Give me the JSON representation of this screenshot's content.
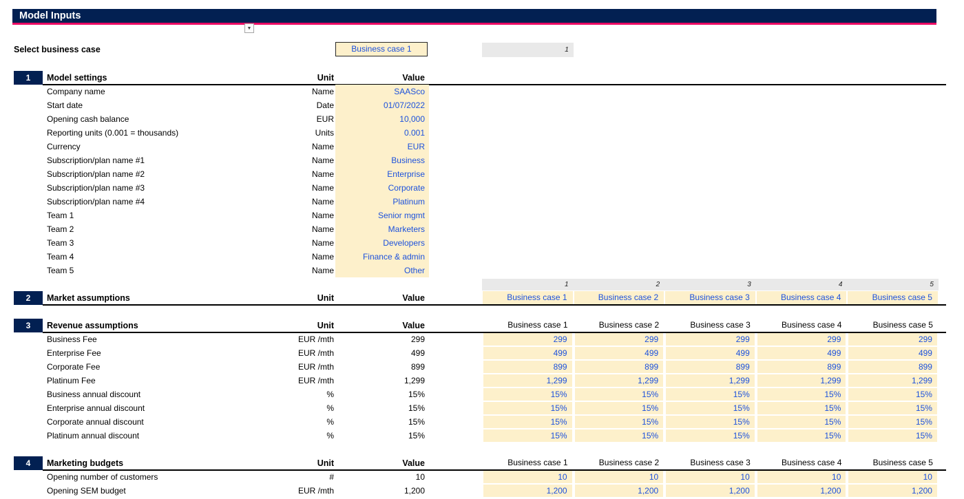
{
  "title_bar": {
    "title": "Model Inputs"
  },
  "selector": {
    "label": "Select business case",
    "selected": "Business case 1",
    "index_cell": "1"
  },
  "case_columns": {
    "numbers": [
      "1",
      "2",
      "3",
      "4",
      "5"
    ],
    "labels": [
      "Business case 1",
      "Business case 2",
      "Business case 3",
      "Business case 4",
      "Business case 5"
    ]
  },
  "sections": [
    {
      "number": "1",
      "title": "Model settings",
      "unit_header": "Unit",
      "value_header": "Value",
      "case_headers": "none",
      "numbers_strip": false,
      "value_style": "input",
      "rows": [
        {
          "label": "Company name",
          "unit": "Name",
          "value": "SAASco"
        },
        {
          "label": "Start date",
          "unit": "Date",
          "value": "01/07/2022"
        },
        {
          "label": "Opening cash balance",
          "unit": "EUR",
          "value": "10,000"
        },
        {
          "label": "Reporting units (0.001 = thousands)",
          "unit": "Units",
          "value": "0.001"
        },
        {
          "label": "Currency",
          "unit": "Name",
          "value": "EUR"
        },
        {
          "label": "Subscription/plan name #1",
          "unit": "Name",
          "value": "Business"
        },
        {
          "label": "Subscription/plan name #2",
          "unit": "Name",
          "value": "Enterprise"
        },
        {
          "label": "Subscription/plan name #3",
          "unit": "Name",
          "value": "Corporate"
        },
        {
          "label": "Subscription/plan name #4",
          "unit": "Name",
          "value": "Platinum"
        },
        {
          "label": "Team 1",
          "unit": "Name",
          "value": "Senior mgmt"
        },
        {
          "label": "Team 2",
          "unit": "Name",
          "value": "Marketers"
        },
        {
          "label": "Team 3",
          "unit": "Name",
          "value": "Developers"
        },
        {
          "label": "Team 4",
          "unit": "Name",
          "value": "Finance & admin"
        },
        {
          "label": "Team 5",
          "unit": "Name",
          "value": "Other"
        }
      ]
    },
    {
      "number": "2",
      "title": "Market assumptions",
      "unit_header": "Unit",
      "value_header": "Value",
      "case_headers": "input",
      "numbers_strip": true,
      "value_style": "plain",
      "rows": []
    },
    {
      "number": "3",
      "title": "Revenue assumptions",
      "unit_header": "Unit",
      "value_header": "Value",
      "case_headers": "plain",
      "numbers_strip": false,
      "value_style": "plain",
      "rows": [
        {
          "label": "Business Fee",
          "unit": "EUR /mth",
          "value": "299",
          "cases": [
            "299",
            "299",
            "299",
            "299",
            "299"
          ]
        },
        {
          "label": "Enterprise Fee",
          "unit": "EUR /mth",
          "value": "499",
          "cases": [
            "499",
            "499",
            "499",
            "499",
            "499"
          ]
        },
        {
          "label": "Corporate Fee",
          "unit": "EUR /mth",
          "value": "899",
          "cases": [
            "899",
            "899",
            "899",
            "899",
            "899"
          ]
        },
        {
          "label": "Platinum Fee",
          "unit": "EUR /mth",
          "value": "1,299",
          "cases": [
            "1,299",
            "1,299",
            "1,299",
            "1,299",
            "1,299"
          ]
        },
        {
          "label": "Business annual discount",
          "unit": "%",
          "value": "15%",
          "cases": [
            "15%",
            "15%",
            "15%",
            "15%",
            "15%"
          ]
        },
        {
          "label": "Enterprise annual discount",
          "unit": "%",
          "value": "15%",
          "cases": [
            "15%",
            "15%",
            "15%",
            "15%",
            "15%"
          ]
        },
        {
          "label": "Corporate annual discount",
          "unit": "%",
          "value": "15%",
          "cases": [
            "15%",
            "15%",
            "15%",
            "15%",
            "15%"
          ]
        },
        {
          "label": "Platinum annual discount",
          "unit": "%",
          "value": "15%",
          "cases": [
            "15%",
            "15%",
            "15%",
            "15%",
            "15%"
          ]
        }
      ]
    },
    {
      "number": "4",
      "title": "Marketing budgets",
      "unit_header": "Unit",
      "value_header": "Value",
      "case_headers": "plain",
      "numbers_strip": false,
      "value_style": "plain",
      "rows": [
        {
          "label": "Opening number of customers",
          "unit": "#",
          "value": "10",
          "cases": [
            "10",
            "10",
            "10",
            "10",
            "10"
          ]
        },
        {
          "label": "Opening SEM budget",
          "unit": "EUR /mth",
          "value": "1,200",
          "cases": [
            "1,200",
            "1,200",
            "1,200",
            "1,200",
            "1,200"
          ]
        }
      ]
    }
  ],
  "colors": {
    "navy": "#022052",
    "pink": "#ec0a63",
    "input_bg": "#fdf0cb",
    "input_text": "#1c51dc",
    "strip_bg": "#e9e9e9"
  }
}
